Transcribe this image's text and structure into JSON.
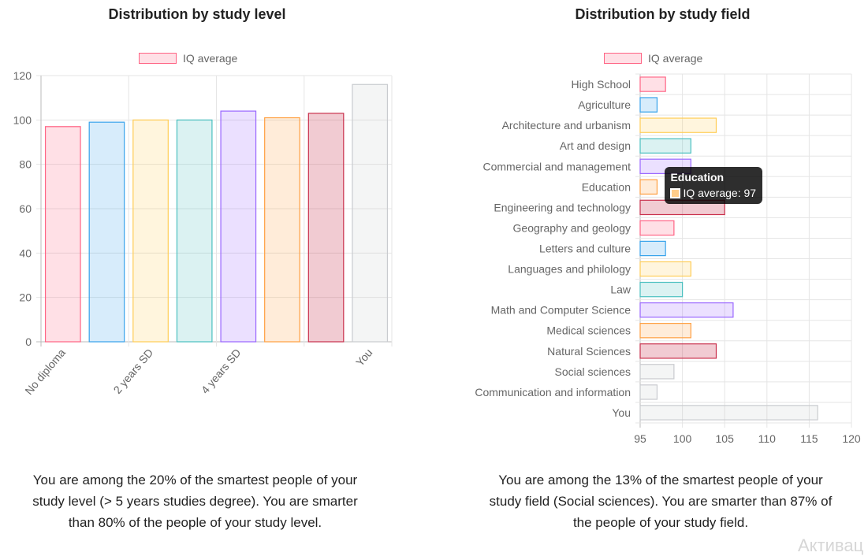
{
  "left_panel": {
    "title": "Distribution by study level",
    "legend_label": "IQ average",
    "summary": "You are among the 20% of the smartest people of your study level (> 5 years studies degree). You are smarter than 80% of the people of your study level."
  },
  "right_panel": {
    "title": "Distribution by study field",
    "legend_label": "IQ average",
    "summary": "You are among the 13% of the smartest people of your study field (Social sciences). You are smarter than 87% of the people of your study field.",
    "tooltip": {
      "title": "Education",
      "label": "IQ average: 97"
    }
  },
  "watermark": "Активац",
  "colors": {
    "pink": "#ff6384",
    "blue": "#36a2eb",
    "yellow": "#ffcd56",
    "teal": "#4bc0c0",
    "purple": "#9966ff",
    "orange": "#ff9f40",
    "red": "#c9304c",
    "gray": "#c9cbcf"
  },
  "chart_data": [
    {
      "type": "bar",
      "title": "Distribution by study level",
      "orientation": "vertical",
      "categories": [
        "No diploma",
        "",
        "2 years SD",
        "",
        "4 years SD",
        "",
        "",
        "You"
      ],
      "series": [
        {
          "name": "IQ average",
          "values": [
            97,
            99,
            100,
            100,
            104,
            101,
            103,
            116
          ]
        }
      ],
      "bar_colors": [
        "pink",
        "blue",
        "yellow",
        "teal",
        "purple",
        "orange",
        "red",
        "gray"
      ],
      "ylim": [
        0,
        120
      ],
      "yticks": [
        0,
        20,
        40,
        60,
        80,
        100,
        120
      ],
      "legend": "top",
      "grid": true
    },
    {
      "type": "bar",
      "title": "Distribution by study field",
      "orientation": "horizontal",
      "categories": [
        "High School",
        "Agriculture",
        "Architecture and urbanism",
        "Art and design",
        "Commercial and management",
        "Education",
        "Engineering and technology",
        "Geography and geology",
        "Letters and culture",
        "Languages and philology",
        "Law",
        "Math and Computer Science",
        "Medical sciences",
        "Natural Sciences",
        "Social sciences",
        "Communication and information",
        "You"
      ],
      "series": [
        {
          "name": "IQ average",
          "values": [
            98,
            97,
            104,
            101,
            101,
            97,
            105,
            99,
            98,
            101,
            100,
            106,
            101,
            104,
            99,
            97,
            116
          ]
        }
      ],
      "bar_colors": [
        "pink",
        "blue",
        "yellow",
        "teal",
        "purple",
        "orange",
        "red",
        "pink",
        "blue",
        "yellow",
        "teal",
        "purple",
        "orange",
        "red",
        "gray",
        "gray",
        "gray"
      ],
      "xlim": [
        95,
        120
      ],
      "xticks": [
        95,
        100,
        105,
        110,
        115,
        120
      ],
      "legend": "top",
      "grid": true,
      "active_tooltip_index": 5
    }
  ]
}
